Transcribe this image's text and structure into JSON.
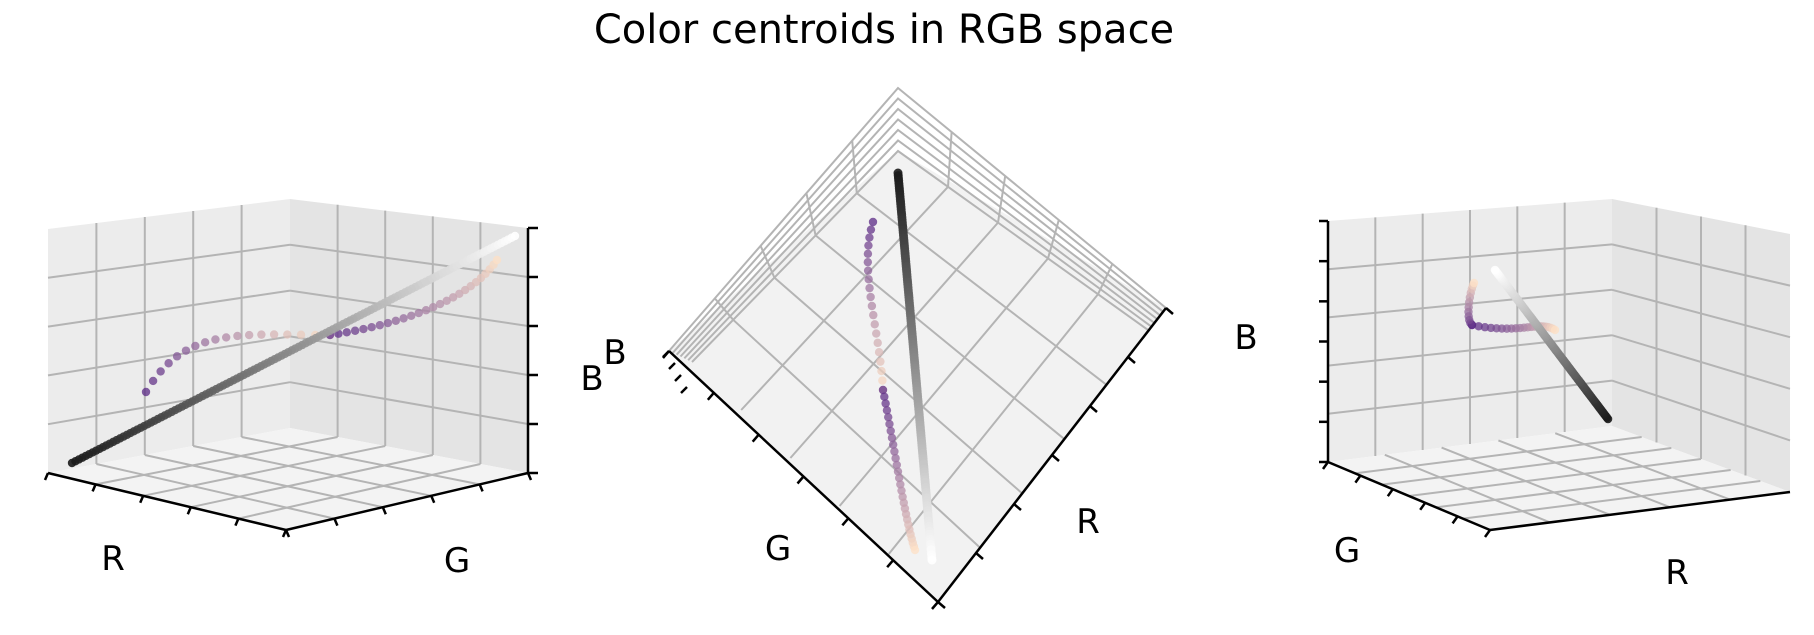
{
  "chart_data": {
    "type": "scatter",
    "title": "Color centroids in RGB space",
    "colors": {
      "pane_back": "#ececec",
      "pane_side": "#e5e5e5",
      "pane_floor": "#f2f2f2",
      "grid": "#b0b0b0",
      "gray_dark": "#1a1a1a",
      "gray_light": "#ffffff",
      "purple": "#5b2a86",
      "peach": "#fde0c5"
    },
    "panels": [
      {
        "name": "left-view",
        "view": "front-oblique",
        "axis_labels": {
          "x": "R",
          "y": "G",
          "z": "B"
        },
        "xlim": [
          0,
          255
        ],
        "ylim": [
          0,
          255
        ],
        "zlim": [
          0,
          255
        ],
        "grid": true
      },
      {
        "name": "center-view",
        "view": "top-down",
        "axis_labels": {
          "x": "R",
          "y": "G",
          "z": "B"
        },
        "xlim": [
          0,
          255
        ],
        "ylim": [
          0,
          255
        ],
        "zlim": [
          0,
          255
        ],
        "grid": true
      },
      {
        "name": "right-view",
        "view": "side-oblique",
        "axis_labels": {
          "x": "R",
          "y": "G",
          "z": "B"
        },
        "xlim": [
          0,
          255
        ],
        "ylim": [
          0,
          255
        ],
        "zlim": [
          0,
          255
        ],
        "grid": true
      }
    ],
    "series": [
      {
        "colormap": "gray",
        "points": "diagonal R = G = B from 20 to 250",
        "start": [
          20,
          20,
          20
        ],
        "end": [
          250,
          250,
          250
        ]
      },
      {
        "colormap": "purple-to-peach",
        "start": [
          95,
          40,
          150
        ],
        "end": [
          255,
          225,
          200
        ]
      }
    ]
  }
}
